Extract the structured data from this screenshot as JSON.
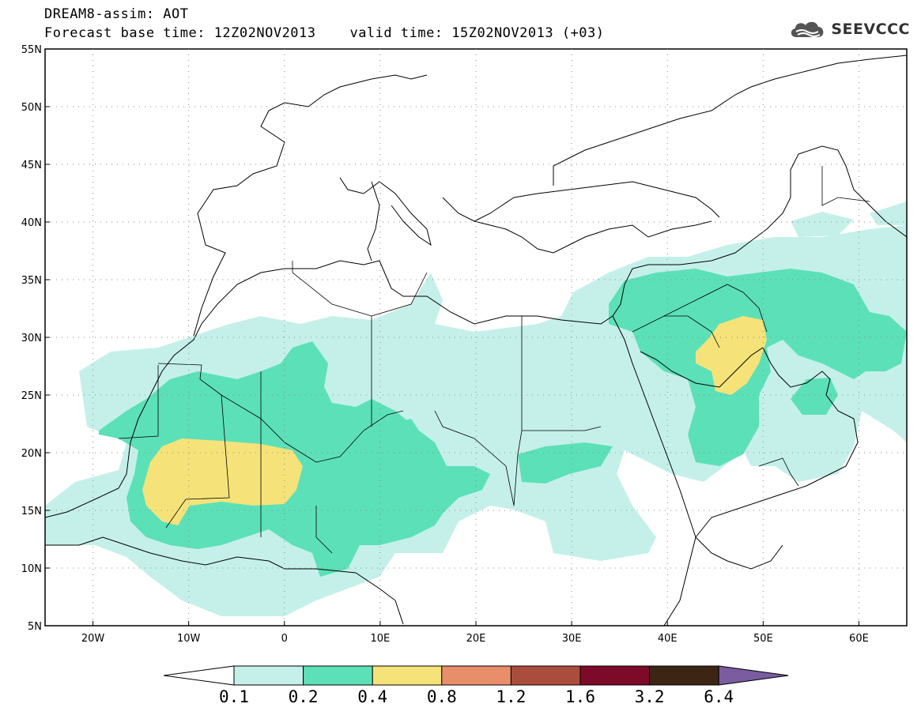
{
  "title": {
    "line1": "DREAM8-assim: AOT",
    "line2": "Forecast base time: 12Z02NOV2013    valid time: 15Z02NOV2013 (+03)"
  },
  "logo": {
    "text": "SEEVCCC",
    "icon": "cloud-logo-icon"
  },
  "map": {
    "lon_range": [
      -25,
      65
    ],
    "lat_range": [
      5,
      55
    ],
    "lat_labels": [
      "55N",
      "50N",
      "45N",
      "40N",
      "35N",
      "30N",
      "25N",
      "20N",
      "15N",
      "10N",
      "5N"
    ],
    "lon_labels": [
      "20W",
      "10W",
      "0",
      "10E",
      "20E",
      "30E",
      "40E",
      "50E",
      "60E"
    ]
  },
  "colorbar": {
    "levels": [
      "0.1",
      "0.2",
      "0.4",
      "0.8",
      "1.2",
      "1.6",
      "3.2",
      "6.4"
    ],
    "colors": [
      "#ffffff",
      "#c5f0ea",
      "#5ce0b8",
      "#f5e37a",
      "#e98e6b",
      "#ab4d3d",
      "#7c0a28",
      "#3d2514",
      "#7b5ca0"
    ]
  }
}
